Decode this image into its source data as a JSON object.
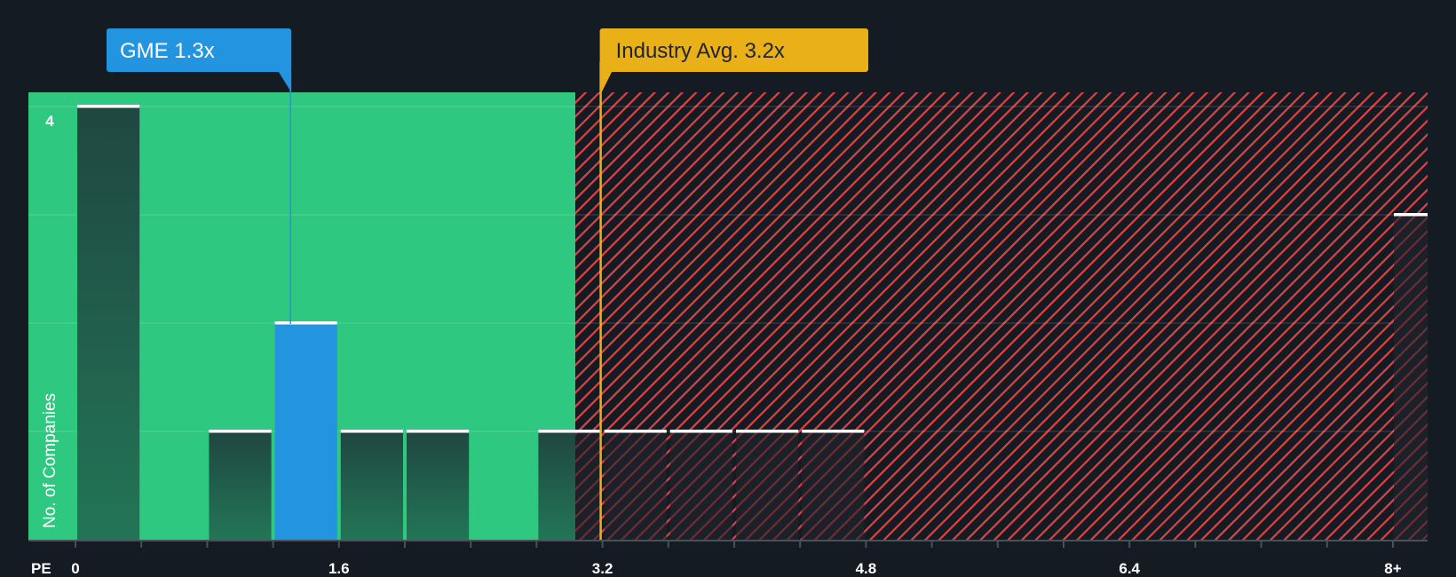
{
  "chart_data": {
    "type": "bar",
    "title": "",
    "xlabel": "PE",
    "ylabel": "No. of Companies",
    "x_tick_labels": [
      "0",
      "1.6",
      "3.2",
      "4.8",
      "6.4",
      "8+"
    ],
    "x_tick_values": [
      0,
      1.6,
      3.2,
      4.8,
      6.4,
      8
    ],
    "y_tick_labels": [
      "4"
    ],
    "ylim": [
      0,
      4
    ],
    "grid": true,
    "bin_width": 0.4,
    "bins": [
      {
        "from": 0.0,
        "to": 0.4,
        "count": 4
      },
      {
        "from": 0.4,
        "to": 0.8,
        "count": 0
      },
      {
        "from": 0.8,
        "to": 1.2,
        "count": 1
      },
      {
        "from": 1.2,
        "to": 1.6,
        "count": 2,
        "highlight": true
      },
      {
        "from": 1.6,
        "to": 2.0,
        "count": 1
      },
      {
        "from": 2.0,
        "to": 2.4,
        "count": 1
      },
      {
        "from": 2.4,
        "to": 2.8,
        "count": 0
      },
      {
        "from": 2.8,
        "to": 3.2,
        "count": 1
      },
      {
        "from": 3.2,
        "to": 3.6,
        "count": 1
      },
      {
        "from": 3.6,
        "to": 4.0,
        "count": 1
      },
      {
        "from": 4.0,
        "to": 4.4,
        "count": 1
      },
      {
        "from": 4.4,
        "to": 4.8,
        "count": 1
      },
      {
        "from": 8.0,
        "to": 8.2,
        "count": 3,
        "label": "8+"
      }
    ],
    "annotations": [
      {
        "label": "GME 1.3x",
        "value": 1.3,
        "color": "#2394df"
      },
      {
        "label": "Industry Avg. 3.2x",
        "value": 3.2,
        "color": "#e9b018"
      }
    ],
    "regions": [
      {
        "name": "undervalued",
        "from": 0,
        "to": 3.1,
        "color": "#2ec880"
      },
      {
        "name": "overvalued",
        "from": 3.1,
        "to": 8.2,
        "color": "#e04343"
      }
    ]
  },
  "labels": {
    "company": "GME 1.3x",
    "industry": "Industry Avg. 3.2x",
    "x_axis": "PE",
    "y_axis": "No. of Companies",
    "y_top": "4"
  },
  "colors": {
    "background": "#151b23",
    "green_zone": "#2ec880",
    "red_hatch": "#e04343",
    "company": "#2394df",
    "industry": "#e9b018",
    "bar_dark": "#214a40",
    "axis": "#4a5059"
  }
}
